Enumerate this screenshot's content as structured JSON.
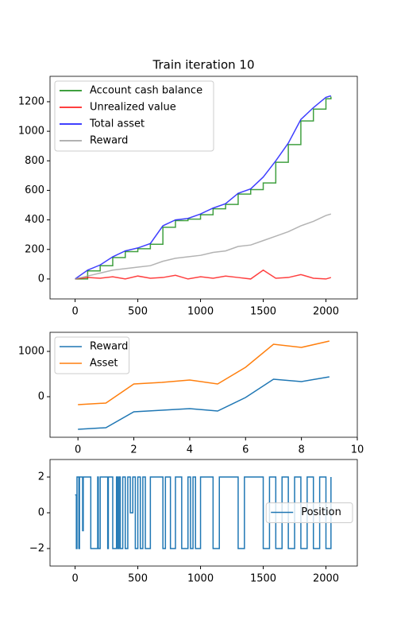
{
  "chart_data": [
    {
      "type": "line",
      "title": "Train iteration 10",
      "x": [
        0,
        100,
        200,
        300,
        400,
        500,
        600,
        700,
        800,
        900,
        1000,
        1100,
        1200,
        1300,
        1400,
        1500,
        1600,
        1700,
        1800,
        1900,
        2000,
        2040
      ],
      "series": [
        {
          "name": "Account cash balance",
          "color": "#008000",
          "drawstyle": "steps",
          "values": [
            0,
            55,
            90,
            145,
            185,
            205,
            235,
            350,
            395,
            405,
            435,
            475,
            505,
            575,
            605,
            650,
            790,
            910,
            1070,
            1150,
            1220,
            1235
          ]
        },
        {
          "name": "Unrealized value",
          "color": "#ff0000",
          "values": [
            0,
            10,
            5,
            15,
            0,
            20,
            5,
            10,
            25,
            0,
            15,
            5,
            20,
            10,
            0,
            60,
            5,
            10,
            30,
            5,
            0,
            10
          ]
        },
        {
          "name": "Total asset",
          "color": "#0000ff",
          "values": [
            0,
            60,
            95,
            150,
            190,
            210,
            240,
            360,
            400,
            410,
            440,
            480,
            510,
            580,
            610,
            690,
            800,
            920,
            1080,
            1160,
            1230,
            1240
          ]
        },
        {
          "name": "Reward",
          "color": "#999999",
          "values": [
            0,
            20,
            40,
            60,
            70,
            80,
            90,
            120,
            140,
            150,
            160,
            180,
            190,
            220,
            230,
            260,
            290,
            320,
            360,
            390,
            430,
            440
          ]
        }
      ],
      "xlim": [
        -200,
        2250
      ],
      "xticks": [
        0,
        500,
        1000,
        1500,
        2000
      ],
      "ylim": [
        -135,
        1372
      ],
      "yticks": [
        0,
        200,
        400,
        600,
        800,
        1000,
        1200
      ],
      "legend": "upper left"
    },
    {
      "type": "line",
      "x": [
        0,
        1,
        2,
        3,
        4,
        5,
        6,
        7,
        8,
        9
      ],
      "series": [
        {
          "name": "Reward",
          "color": "#1f77b4",
          "values": [
            -720,
            -684,
            -333,
            -298,
            -263,
            -316,
            -18,
            386,
            333,
            439
          ]
        },
        {
          "name": "Asset",
          "color": "#ff7f0e",
          "values": [
            -175,
            -140,
            281,
            316,
            368,
            281,
            649,
            1158,
            1088,
            1228
          ]
        }
      ],
      "xlim": [
        -1,
        10
      ],
      "xticks": [
        0,
        2,
        4,
        6,
        8,
        10
      ],
      "ylim": [
        -895,
        1421
      ],
      "yticks": [
        0,
        1000
      ],
      "legend": "upper left"
    },
    {
      "type": "line",
      "x": [
        0,
        10,
        15,
        30,
        35,
        60,
        65,
        120,
        125,
        180,
        185,
        200,
        205,
        260,
        265,
        300,
        330,
        340,
        350,
        360,
        380,
        400,
        420,
        440,
        460,
        480,
        500,
        520,
        540,
        560,
        600,
        640,
        700,
        720,
        760,
        800,
        850,
        900,
        920,
        940,
        960,
        1000,
        1050,
        1100,
        1150,
        1200,
        1250,
        1300,
        1350,
        1400,
        1450,
        1500,
        1550,
        1600,
        1650,
        1700,
        1750,
        1800,
        1850,
        1900,
        1950,
        2000,
        2040
      ],
      "series": [
        {
          "name": "Position",
          "color": "#1f77b4",
          "drawstyle": "steps",
          "values": [
            1,
            -2,
            2,
            -2,
            2,
            -1,
            2,
            2,
            -2,
            2,
            -2,
            2,
            2,
            -2,
            2,
            -2,
            2,
            -2,
            2,
            -2,
            2,
            -2,
            2,
            0,
            2,
            -2,
            2,
            -2,
            2,
            -2,
            2,
            2,
            -2,
            2,
            -2,
            2,
            -2,
            2,
            -2,
            2,
            -2,
            2,
            2,
            -2,
            2,
            2,
            2,
            -2,
            2,
            2,
            2,
            -2,
            2,
            -2,
            2,
            -2,
            2,
            -2,
            2,
            -2,
            2,
            -2,
            2
          ]
        }
      ],
      "xlim": [
        -200,
        2250
      ],
      "xticks": [
        0,
        500,
        1000,
        1500,
        2000
      ],
      "ylim": [
        -2.98,
        2.98
      ],
      "yticks": [
        {
          "value": -2,
          "label": "−2"
        },
        0,
        2
      ],
      "legend": "center right"
    }
  ]
}
